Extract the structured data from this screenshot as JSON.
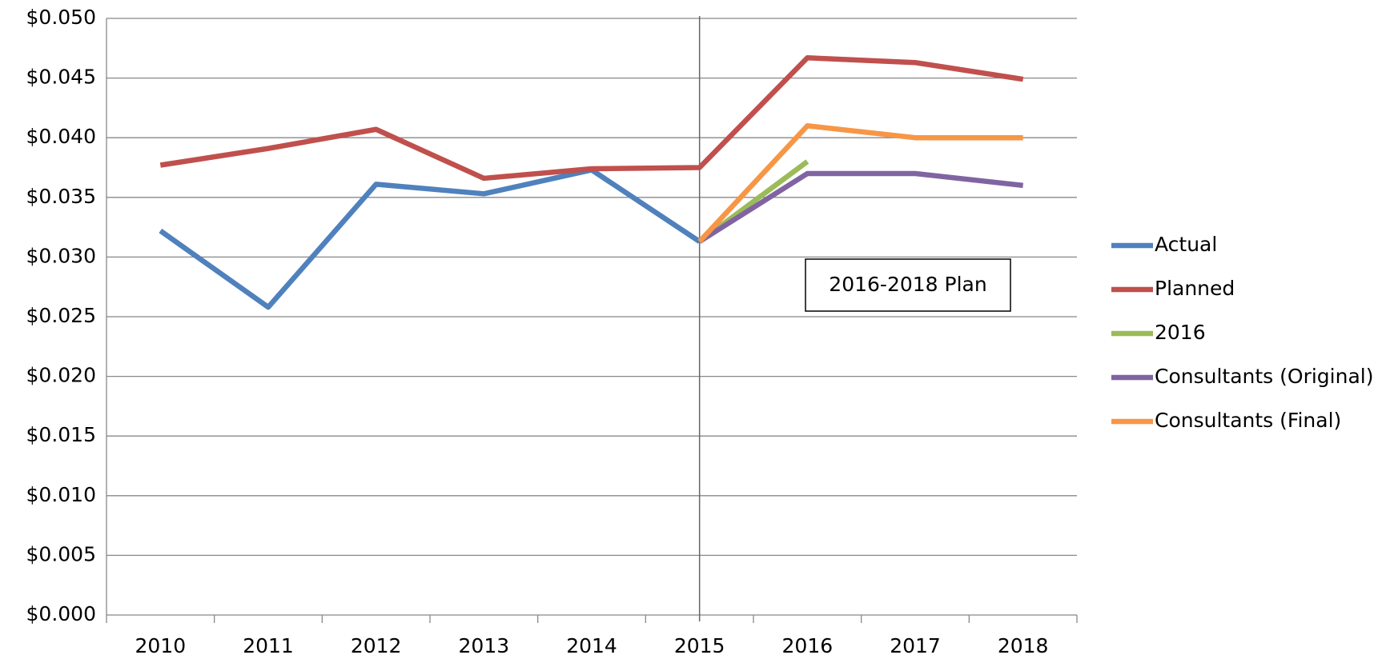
{
  "chart_data": {
    "type": "line",
    "categories": [
      "2010",
      "2011",
      "2012",
      "2013",
      "2014",
      "2015",
      "2016",
      "2017",
      "2018"
    ],
    "series": [
      {
        "name": "Actual",
        "color": "#4f81bd",
        "values": [
          0.0322,
          0.0258,
          0.0361,
          0.0353,
          0.0373,
          0.0313,
          null,
          null,
          null
        ]
      },
      {
        "name": "Planned",
        "color": "#c0504d",
        "values": [
          0.0377,
          0.0391,
          0.0407,
          0.0366,
          0.0374,
          0.0375,
          0.0467,
          0.0463,
          0.0449
        ]
      },
      {
        "name": "2016",
        "color": "#9bbb59",
        "values": [
          null,
          null,
          null,
          null,
          null,
          0.0313,
          0.038,
          null,
          null
        ]
      },
      {
        "name": "Consultants (Original)",
        "color": "#8064a2",
        "values": [
          null,
          null,
          null,
          null,
          null,
          0.0313,
          0.037,
          0.037,
          0.036
        ]
      },
      {
        "name": "Consultants (Final)",
        "color": "#f79646",
        "values": [
          null,
          null,
          null,
          null,
          null,
          0.0313,
          0.041,
          0.04,
          0.04
        ]
      }
    ],
    "ylim": [
      0,
      0.05
    ],
    "yticks": [
      {
        "value": 0,
        "label": "$0.000"
      },
      {
        "value": 0.005,
        "label": "$0.005"
      },
      {
        "value": 0.01,
        "label": "$0.010"
      },
      {
        "value": 0.015,
        "label": "$0.015"
      },
      {
        "value": 0.02,
        "label": "$0.020"
      },
      {
        "value": 0.025,
        "label": "$0.025"
      },
      {
        "value": 0.03,
        "label": "$0.030"
      },
      {
        "value": 0.035,
        "label": "$0.035"
      },
      {
        "value": 0.04,
        "label": "$0.040"
      },
      {
        "value": 0.045,
        "label": "$0.045"
      },
      {
        "value": 0.05,
        "label": "$0.050"
      }
    ],
    "grid": true,
    "legend": "right",
    "annotation": "2016-2018 Plan"
  }
}
